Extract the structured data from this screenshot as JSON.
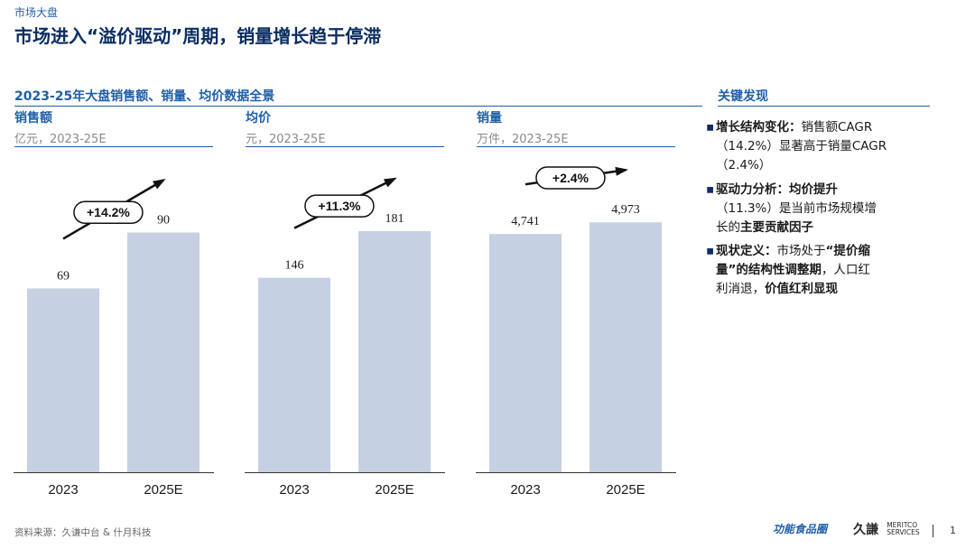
{
  "header": {
    "breadcrumb": "市场大盘",
    "title": "市场进入“溢价驱动”周期，销量增长趋于停滞"
  },
  "section_title": "2023-25年大盘销售额、销量、均价数据全景",
  "colors": {
    "bar": "#c5d0e3",
    "accent": "#1f5fa8",
    "title": "#0b2d63"
  },
  "chart_data": [
    {
      "type": "bar",
      "title": "销售额",
      "unit": "亿元，2023-25E",
      "categories": [
        "2023",
        "2025E"
      ],
      "values": [
        69,
        90
      ],
      "value_labels": [
        "69",
        "90"
      ],
      "growth": "+14.2%",
      "ylim": [
        0,
        100
      ]
    },
    {
      "type": "bar",
      "title": "均价",
      "unit": "元，2023-25E",
      "categories": [
        "2023",
        "2025E"
      ],
      "values": [
        146,
        181
      ],
      "value_labels": [
        "146",
        "181"
      ],
      "growth": "+11.3%",
      "ylim": [
        0,
        200
      ]
    },
    {
      "type": "bar",
      "title": "销量",
      "unit": "万件，2023-25E",
      "categories": [
        "2023",
        "2025E"
      ],
      "values": [
        4741,
        4973
      ],
      "value_labels": [
        "4,741",
        "4,973"
      ],
      "growth": "+2.4%",
      "ylim": [
        0,
        5300
      ]
    }
  ],
  "findings": {
    "title": "关键发现",
    "items": [
      {
        "bullet": "▪",
        "head": "增长结构变化：",
        "line1": "销售额CAGR",
        "line2": "（14.2%）显著高于销量CAGR",
        "line3": "（2.4%）"
      },
      {
        "bullet": "▪",
        "head": "驱动力分析：均价提升",
        "line2": "（11.3%）是当前市场规模增",
        "line3a": "长的",
        "line3b": "主要贡献因子"
      },
      {
        "bullet": "▪",
        "head": "现状定义：",
        "line1a": "市场处于",
        "line1b": "“提价缩",
        "line2a": "量”的结构性调整期",
        "line2b": "，人口红",
        "line3a": "利消退，",
        "line3b": "价值红利显现"
      }
    ]
  },
  "footer": {
    "source": "资料来源：久谦中台 & 什月科技",
    "logo_functional": "功能食品圈",
    "logo_jq": "久謙",
    "logo_meritco_1": "MERITCO",
    "logo_meritco_2": "SERVICES",
    "page_number": "1"
  }
}
